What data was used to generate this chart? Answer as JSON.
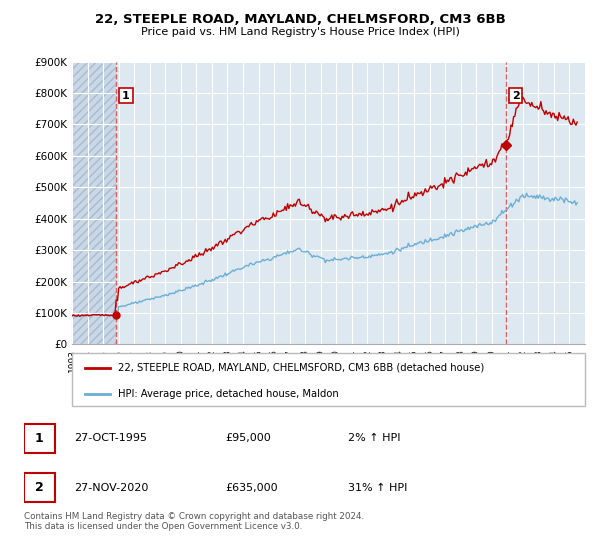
{
  "title": "22, STEEPLE ROAD, MAYLAND, CHELMSFORD, CM3 6BB",
  "subtitle": "Price paid vs. HM Land Registry's House Price Index (HPI)",
  "ylim": [
    0,
    900000
  ],
  "yticks": [
    0,
    100000,
    200000,
    300000,
    400000,
    500000,
    600000,
    700000,
    800000,
    900000
  ],
  "ytick_labels": [
    "£0",
    "£100K",
    "£200K",
    "£300K",
    "£400K",
    "£500K",
    "£600K",
    "£700K",
    "£800K",
    "£900K"
  ],
  "purchase1_x": 1995.82,
  "purchase1_y": 95000,
  "purchase1_label": "1",
  "purchase2_x": 2020.9,
  "purchase2_y": 635000,
  "purchase2_label": "2",
  "hpi_color": "#6baed6",
  "price_color": "#c00000",
  "vline_color": "#e06060",
  "hatch_bg": "#dde8f0",
  "plot_bg": "#dde8f0",
  "grid_color": "#ffffff",
  "legend_line1": "22, STEEPLE ROAD, MAYLAND, CHELMSFORD, CM3 6BB (detached house)",
  "legend_line2": "HPI: Average price, detached house, Maldon",
  "table_row1": [
    "1",
    "27-OCT-1995",
    "£95,000",
    "2% ↑ HPI"
  ],
  "table_row2": [
    "2",
    "27-NOV-2020",
    "£635,000",
    "31% ↑ HPI"
  ],
  "footer": "Contains HM Land Registry data © Crown copyright and database right 2024.\nThis data is licensed under the Open Government Licence v3.0.",
  "xmin": 1993,
  "xmax": 2026
}
